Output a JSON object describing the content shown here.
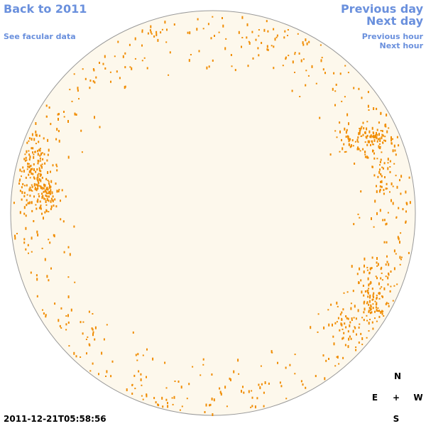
{
  "header": {
    "back_link": "Back to 2011",
    "facular_link": "See facular data",
    "previous_day": "Previous day",
    "next_day": "Next day",
    "previous_hour": "Previous hour",
    "next_hour": "Next hour"
  },
  "timestamp": "2011-12-21T05:58:56",
  "compass": {
    "north": "N",
    "east": "E",
    "center": "+",
    "west": "W",
    "south": "S"
  }
}
